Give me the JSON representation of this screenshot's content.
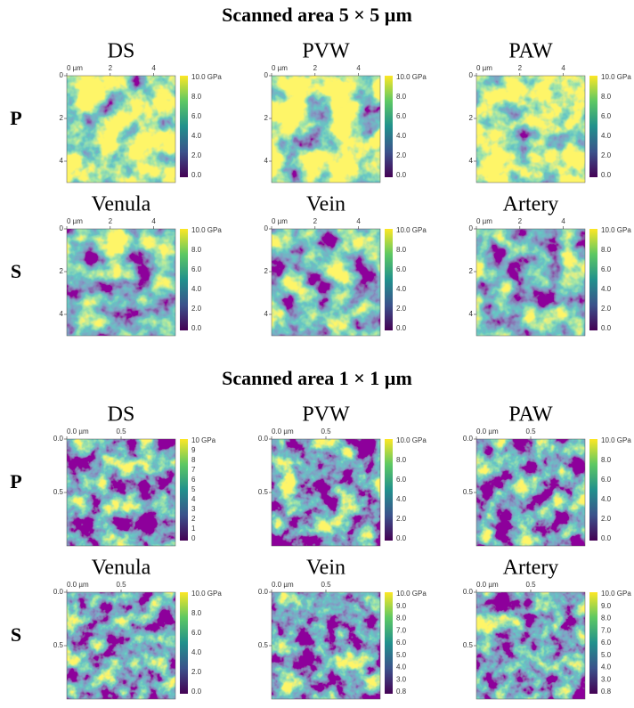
{
  "sections": [
    {
      "title": "Scanned area 5 × 5 µm",
      "rows": [
        {
          "label": "P",
          "panels": [
            {
              "title": "DS",
              "xticks": [
                "0 µm",
                "2",
                "4"
              ],
              "yticks": [
                "0",
                "2",
                "4"
              ],
              "colorbar": [
                "10.0 GPa",
                "8.0",
                "6.0",
                "4.0",
                "2.0",
                "0.0"
              ]
            },
            {
              "title": "PVW",
              "xticks": [
                "0 µm",
                "2",
                "4"
              ],
              "yticks": [
                "0",
                "2",
                "4"
              ],
              "colorbar": [
                "10.0 GPa",
                "8.0",
                "6.0",
                "4.0",
                "2.0",
                "0.0"
              ]
            },
            {
              "title": "PAW",
              "xticks": [
                "0 µm",
                "2",
                "4"
              ],
              "yticks": [
                "0",
                "2",
                "4"
              ],
              "colorbar": [
                "10.0 GPa",
                "8.0",
                "6.0",
                "4.0",
                "2.0",
                "0.0"
              ]
            }
          ]
        },
        {
          "label": "S",
          "panels": [
            {
              "title": "Venula",
              "xticks": [
                "0 µm",
                "2",
                "4"
              ],
              "yticks": [
                "0",
                "2",
                "4"
              ],
              "colorbar": [
                "10.0 GPa",
                "8.0",
                "6.0",
                "4.0",
                "2.0",
                "0.0"
              ]
            },
            {
              "title": "Vein",
              "xticks": [
                "0 µm",
                "2",
                "4"
              ],
              "yticks": [
                "0",
                "2",
                "4"
              ],
              "colorbar": [
                "10.0 GPa",
                "8.0",
                "6.0",
                "4.0",
                "2.0",
                "0.0"
              ]
            },
            {
              "title": "Artery",
              "xticks": [
                "0 µm",
                "2",
                "4"
              ],
              "yticks": [
                "0",
                "2",
                "4"
              ],
              "colorbar": [
                "10.0 GPa",
                "8.0",
                "6.0",
                "4.0",
                "2.0",
                "0.0"
              ]
            }
          ]
        }
      ]
    },
    {
      "title": "Scanned area 1 × 1 µm",
      "rows": [
        {
          "label": "P",
          "panels": [
            {
              "title": "DS",
              "xticks": [
                "0.0 µm",
                "0.5"
              ],
              "yticks": [
                "0.0",
                "0.5"
              ],
              "colorbar": [
                "10 GPa",
                "9",
                "8",
                "7",
                "6",
                "5",
                "4",
                "3",
                "2",
                "1",
                "0"
              ]
            },
            {
              "title": "PVW",
              "xticks": [
                "0.0 µm",
                "0.5"
              ],
              "yticks": [
                "0.0",
                "0.5"
              ],
              "colorbar": [
                "10.0 GPa",
                "8.0",
                "6.0",
                "4.0",
                "2.0",
                "0.0"
              ]
            },
            {
              "title": "PAW",
              "xticks": [
                "0.0 µm",
                "0.5"
              ],
              "yticks": [
                "0.0",
                "0.5"
              ],
              "colorbar": [
                "10.0 GPa",
                "8.0",
                "6.0",
                "4.0",
                "2.0",
                "0.0"
              ]
            }
          ]
        },
        {
          "label": "S",
          "panels": [
            {
              "title": "Venula",
              "xticks": [
                "0.0 µm",
                "0.5"
              ],
              "yticks": [
                "0.0",
                "0.5"
              ],
              "colorbar": [
                "10.0 GPa",
                "8.0",
                "6.0",
                "4.0",
                "2.0",
                "0.0"
              ]
            },
            {
              "title": "Vein",
              "xticks": [
                "0.0 µm",
                "0.5"
              ],
              "yticks": [
                "0.0",
                "0.5"
              ],
              "colorbar": [
                "10.0 GPa",
                "9.0",
                "8.0",
                "7.0",
                "6.0",
                "5.0",
                "4.0",
                "3.0",
                "0.8"
              ]
            },
            {
              "title": "Artery",
              "xticks": [
                "0.0 µm",
                "0.5"
              ],
              "yticks": [
                "0.0",
                "0.5"
              ],
              "colorbar": [
                "10.0 GPa",
                "9.0",
                "8.0",
                "7.0",
                "6.0",
                "5.0",
                "4.0",
                "3.0",
                "0.8"
              ]
            }
          ]
        }
      ]
    }
  ]
}
